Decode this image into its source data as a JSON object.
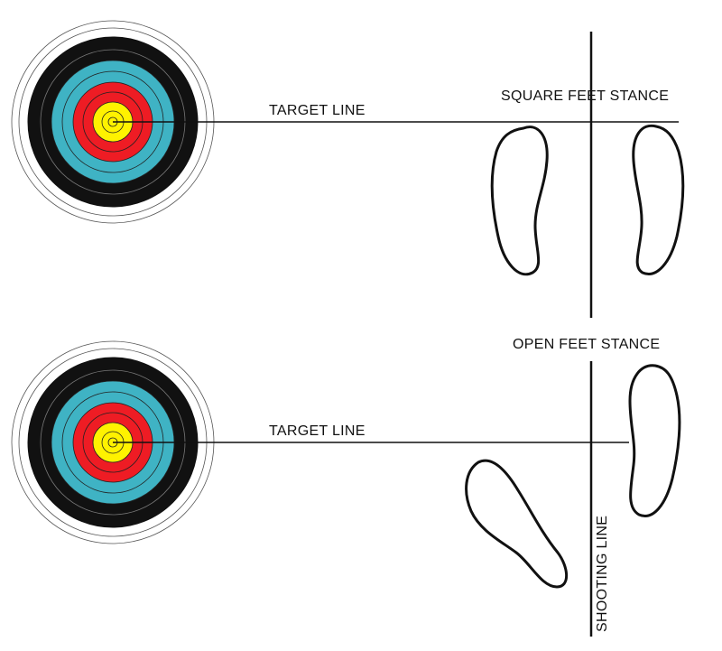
{
  "diagram": {
    "target_colors": {
      "outer": "#ffffff",
      "black": "#111111",
      "blue": "#3fb3c4",
      "red": "#ee1c24",
      "yellow": "#fff200",
      "ring_line": "#222222"
    },
    "panels": [
      {
        "name": "square",
        "stance_label": "SQUARE FEET STANCE",
        "target_line_label": "TARGET LINE"
      },
      {
        "name": "open",
        "stance_label": "OPEN FEET STANCE",
        "target_line_label": "TARGET LINE"
      }
    ],
    "shooting_line_label": "SHOOTING LINE"
  }
}
